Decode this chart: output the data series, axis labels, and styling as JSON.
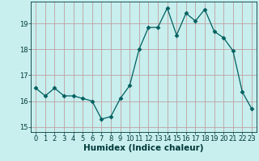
{
  "x": [
    0,
    1,
    2,
    3,
    4,
    5,
    6,
    7,
    8,
    9,
    10,
    11,
    12,
    13,
    14,
    15,
    16,
    17,
    18,
    19,
    20,
    21,
    22,
    23
  ],
  "y": [
    16.5,
    16.2,
    16.5,
    16.2,
    16.2,
    16.1,
    16.0,
    15.3,
    15.4,
    16.1,
    16.6,
    18.0,
    18.85,
    18.85,
    19.6,
    18.55,
    19.4,
    19.1,
    19.55,
    18.7,
    18.45,
    17.95,
    16.35,
    15.7
  ],
  "line_color": "#005f5f",
  "marker": "D",
  "marker_size": 2.5,
  "bg_color": "#c8eeee",
  "grid_color": "#c0a0a0",
  "xlabel": "Humidex (Indice chaleur)",
  "ylabel": "",
  "title": "",
  "ylim": [
    14.8,
    19.85
  ],
  "yticks": [
    15,
    16,
    17,
    18,
    19
  ],
  "xticks": [
    0,
    1,
    2,
    3,
    4,
    5,
    6,
    7,
    8,
    9,
    10,
    11,
    12,
    13,
    14,
    15,
    16,
    17,
    18,
    19,
    20,
    21,
    22,
    23
  ],
  "font_color": "#003838",
  "tick_fontsize": 6,
  "label_fontsize": 7.5
}
